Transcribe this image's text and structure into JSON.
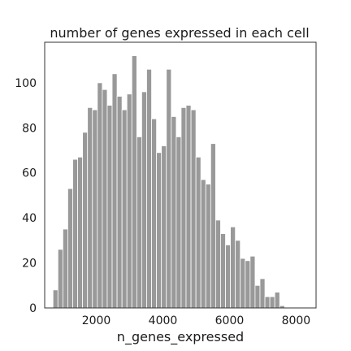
{
  "chart_data": {
    "type": "bar",
    "subtype": "histogram",
    "title": "number of genes expressed in each cell",
    "xlabel": "n_genes_expressed",
    "ylabel": "",
    "xlim": [
      450,
      8600
    ],
    "ylim": [
      0,
      118
    ],
    "xticks": [
      2000,
      4000,
      6000,
      8000
    ],
    "yticks": [
      0,
      20,
      40,
      60,
      80,
      100
    ],
    "grid": false,
    "bar_color": "#999999",
    "bins": {
      "start": 700,
      "width": 148,
      "counts": [
        8,
        26,
        35,
        53,
        66,
        67,
        78,
        89,
        88,
        100,
        97,
        90,
        104,
        94,
        88,
        95,
        112,
        76,
        96,
        106,
        84,
        69,
        72,
        106,
        85,
        76,
        89,
        90,
        88,
        67,
        57,
        55,
        73,
        39,
        33,
        28,
        36,
        30,
        22,
        21,
        23,
        10,
        13,
        5,
        5,
        7,
        1
      ]
    }
  }
}
